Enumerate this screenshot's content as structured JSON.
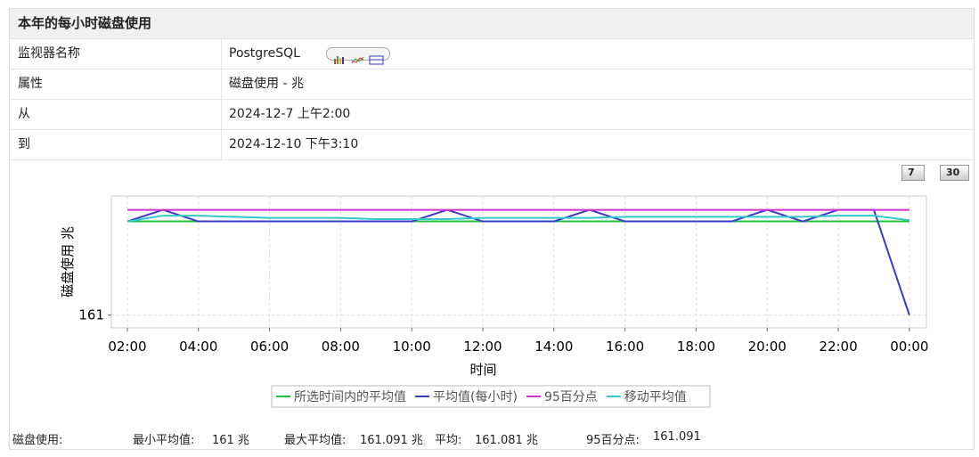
{
  "header": {
    "title": "本年的每小时磁盘使用"
  },
  "table": {
    "rows": [
      [
        "监视器名称",
        "PostgreSQL"
      ],
      [
        "属性",
        "磁盘使用 - 兆"
      ],
      [
        "从",
        "2024-12-7 上午2:00"
      ],
      [
        "到",
        "2024-12-10 下午3:10"
      ]
    ]
  },
  "buttons": [
    "7",
    "30"
  ],
  "chart_data": {
    "type": "line",
    "y_label": "磁盘使用 兆",
    "x_label": "时间",
    "x": [
      2,
      3,
      4,
      5,
      6,
      7,
      8,
      9,
      10,
      11,
      12,
      13,
      14,
      15,
      16,
      17,
      18,
      19,
      20,
      21,
      22,
      23,
      24
    ],
    "xlim": [
      1.55,
      24.48
    ],
    "xticks": [
      {
        "value": 2,
        "label": "02:00"
      },
      {
        "value": 4,
        "label": "04:00"
      },
      {
        "value": 6,
        "label": "06:00"
      },
      {
        "value": 8,
        "label": "08:00"
      },
      {
        "value": 10,
        "label": "10:00"
      },
      {
        "value": 12,
        "label": "12:00"
      },
      {
        "value": 14,
        "label": "14:00"
      },
      {
        "value": 16,
        "label": "16:00"
      },
      {
        "value": 18,
        "label": "18:00"
      },
      {
        "value": 20,
        "label": "20:00"
      },
      {
        "value": 22,
        "label": "22:00"
      },
      {
        "value": 24,
        "label": "00:00"
      }
    ],
    "ylim": [
      160.989,
      161.103
    ],
    "yticks": [
      161
    ],
    "grid": true,
    "series": [
      {
        "name": "所选时间内的平均值",
        "color": "#22c040",
        "values": [
          161.081,
          161.081,
          161.081,
          161.081,
          161.081,
          161.081,
          161.081,
          161.081,
          161.081,
          161.081,
          161.081,
          161.081,
          161.081,
          161.081,
          161.081,
          161.081,
          161.081,
          161.081,
          161.081,
          161.081,
          161.081,
          161.081,
          161.081
        ]
      },
      {
        "name": "平均值(每小时)",
        "color": "#3a3ac8",
        "values": [
          161.081,
          161.091,
          161.081,
          161.081,
          161.081,
          161.081,
          161.081,
          161.081,
          161.081,
          161.091,
          161.081,
          161.081,
          161.081,
          161.091,
          161.081,
          161.081,
          161.081,
          161.081,
          161.091,
          161.081,
          161.091,
          161.091,
          161
        ]
      },
      {
        "name": "95百分点",
        "color": "#d030d0",
        "values": [
          161.091,
          161.091,
          161.091,
          161.091,
          161.091,
          161.091,
          161.091,
          161.091,
          161.091,
          161.091,
          161.091,
          161.091,
          161.091,
          161.091,
          161.091,
          161.091,
          161.091,
          161.091,
          161.091,
          161.091,
          161.091,
          161.091,
          161.091
        ]
      },
      {
        "name": "移动平均值",
        "color": "#30c8c8",
        "values": [
          161.081,
          161.086,
          161.086,
          161.085,
          161.084,
          161.084,
          161.084,
          161.083,
          161.083,
          161.083,
          161.084,
          161.084,
          161.084,
          161.084,
          161.085,
          161.085,
          161.085,
          161.085,
          161.085,
          161.085,
          161.086,
          161.086,
          161.082
        ]
      }
    ]
  },
  "footer": {
    "label": "磁盘使用:",
    "items": [
      [
        "最小平均值:",
        "161 兆"
      ],
      [
        "最大平均值:",
        "161.091 兆"
      ],
      [
        "平均:",
        "161.081 兆"
      ],
      [
        "95百分点:",
        "161.091"
      ]
    ]
  }
}
